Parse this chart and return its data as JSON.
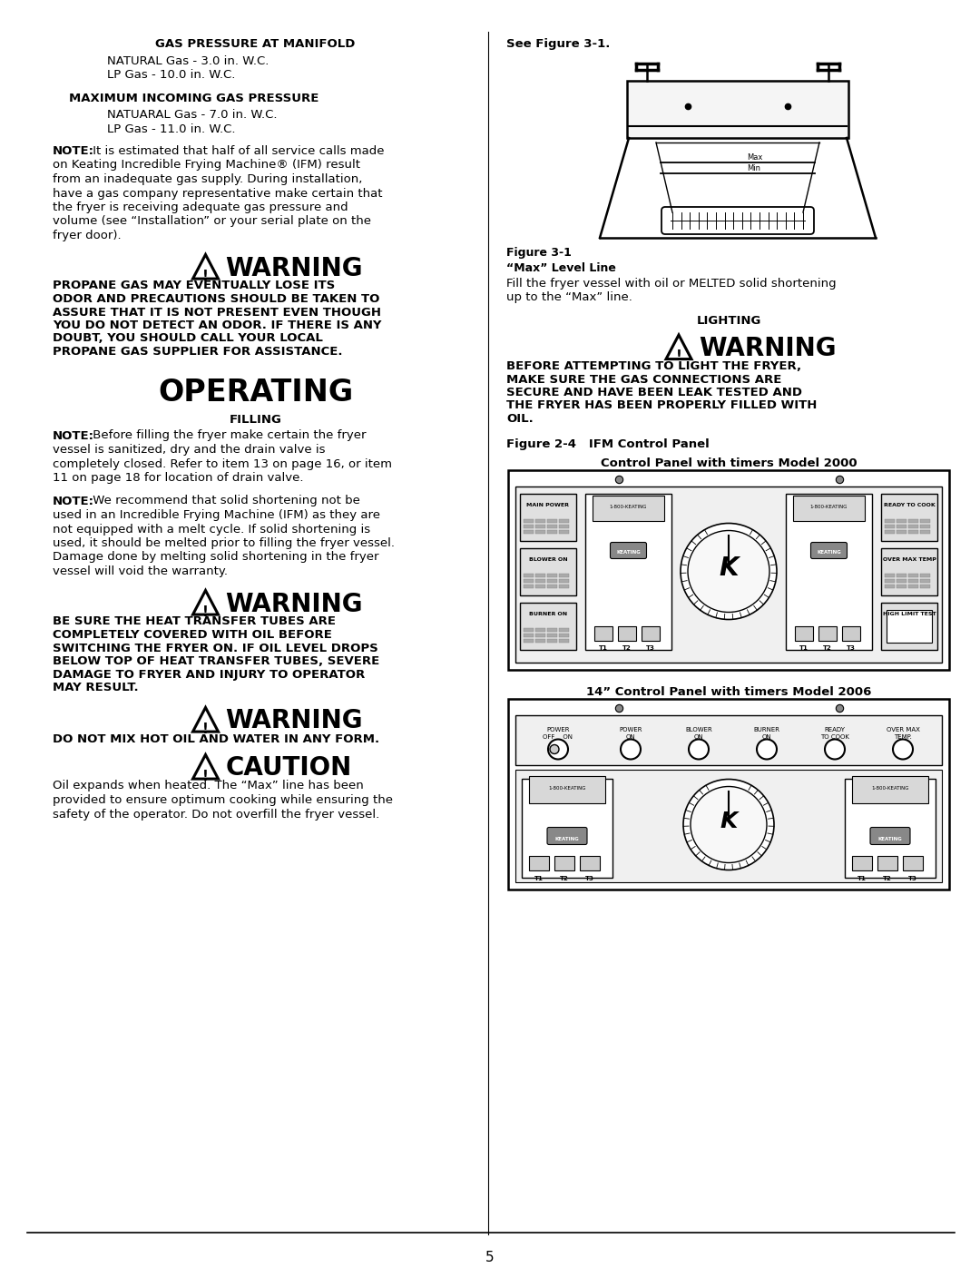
{
  "page_num": "5",
  "bg_color": "#ffffff",
  "text_color": "#000000",
  "left_col": {
    "gas_pressure_heading": "GAS PRESSURE AT MANIFOLD",
    "natural_gas": "NATURAL Gas - 3.0 in. W.C.",
    "lp_gas_manifold": "LP Gas - 10.0 in. W.C.",
    "max_incoming_heading": "MAXIMUM INCOMING GAS PRESSURE",
    "natuaral_gas": "NATUARAL Gas - 7.0 in. W.C.",
    "lp_gas_max": "LP Gas - 11.0 in. W.C.",
    "warning1_text_lines": [
      "PROPANE GAS MAY EVENTUALLY LOSE ITS",
      "ODOR AND PRECAUTIONS SHOULD BE TAKEN TO",
      "ASSURE THAT IT IS NOT PRESENT EVEN THOUGH",
      "YOU DO NOT DETECT AN ODOR. IF THERE IS ANY",
      "DOUBT, YOU SHOULD CALL YOUR LOCAL",
      "PROPANE GAS SUPPLIER FOR ASSISTANCE."
    ],
    "operating_heading": "OPERATING",
    "filling_heading": "FILLING",
    "warning2_text_lines": [
      "BE SURE THE HEAT TRANSFER TUBES ARE",
      "COMPLETELY COVERED WITH OIL BEFORE",
      "SWITCHING THE FRYER ON. IF OIL LEVEL DROPS",
      "BELOW TOP OF HEAT TRANSFER TUBES, SEVERE",
      "DAMAGE TO FRYER AND INJURY TO OPERATOR",
      "MAY RESULT."
    ],
    "warning3_text": "DO NOT MIX HOT OIL AND WATER IN ANY FORM.",
    "caution_text_lines": [
      "Oil expands when heated. The “Max” line has been",
      "provided to ensure optimum cooking while ensuring the",
      "safety of the operator. Do not overfill the fryer vessel."
    ]
  },
  "right_col": {
    "see_figure": "See Figure 3-1.",
    "figure_label": "Figure 3-1",
    "max_level_bold": "“Max” Level Line",
    "fill_text_lines": [
      "Fill the fryer vessel with oil or MELTED solid shortening",
      "up to the “Max” line."
    ],
    "lighting_heading": "LIGHTING",
    "warning4_text_lines": [
      "BEFORE ATTEMPTING TO LIGHT THE FRYER,",
      "MAKE SURE THE GAS CONNECTIONS ARE",
      "SECURE AND HAVE BEEN LEAK TESTED AND",
      "THE FRYER HAS BEEN PROPERLY FILLED WITH",
      "OIL."
    ],
    "figure24_label": "Figure 2-4   IFM Control Panel",
    "control_panel_heading": "Control Panel with timers Model 2000",
    "control_panel14_heading": "14” Control Panel with timers Model 2006"
  }
}
